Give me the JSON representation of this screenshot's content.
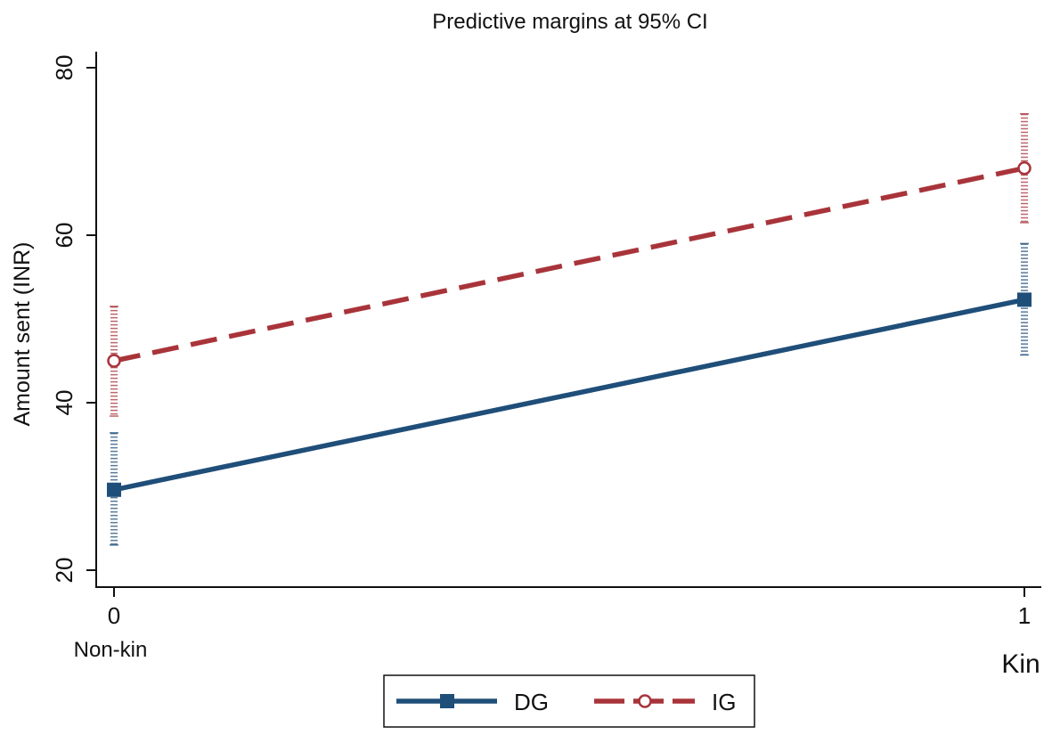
{
  "chart_data": {
    "type": "line",
    "title": "Predictive margins at 95% CI",
    "xlabel": "",
    "ylabel": "Amount sent (INR)",
    "x": [
      0,
      1
    ],
    "x_tick_labels": [
      "0",
      "1"
    ],
    "x_category_labels": [
      "Non-kin",
      "Kin"
    ],
    "y_ticks": [
      20,
      40,
      60,
      80
    ],
    "ylim": [
      18,
      80.5
    ],
    "grid": false,
    "legend_position": "bottom",
    "series": [
      {
        "name": "DG",
        "color": "#1f4e79",
        "line_style": "solid",
        "marker": "square",
        "values": [
          29.6,
          52.3
        ],
        "ci_lower": [
          23.0,
          45.7
        ],
        "ci_upper": [
          36.4,
          59.0
        ]
      },
      {
        "name": "IG",
        "color": "#a8343a",
        "line_style": "dashed",
        "marker": "hollow-circle",
        "values": [
          45.0,
          68.0
        ],
        "ci_lower": [
          38.4,
          61.5
        ],
        "ci_upper": [
          51.5,
          74.5
        ]
      }
    ]
  }
}
